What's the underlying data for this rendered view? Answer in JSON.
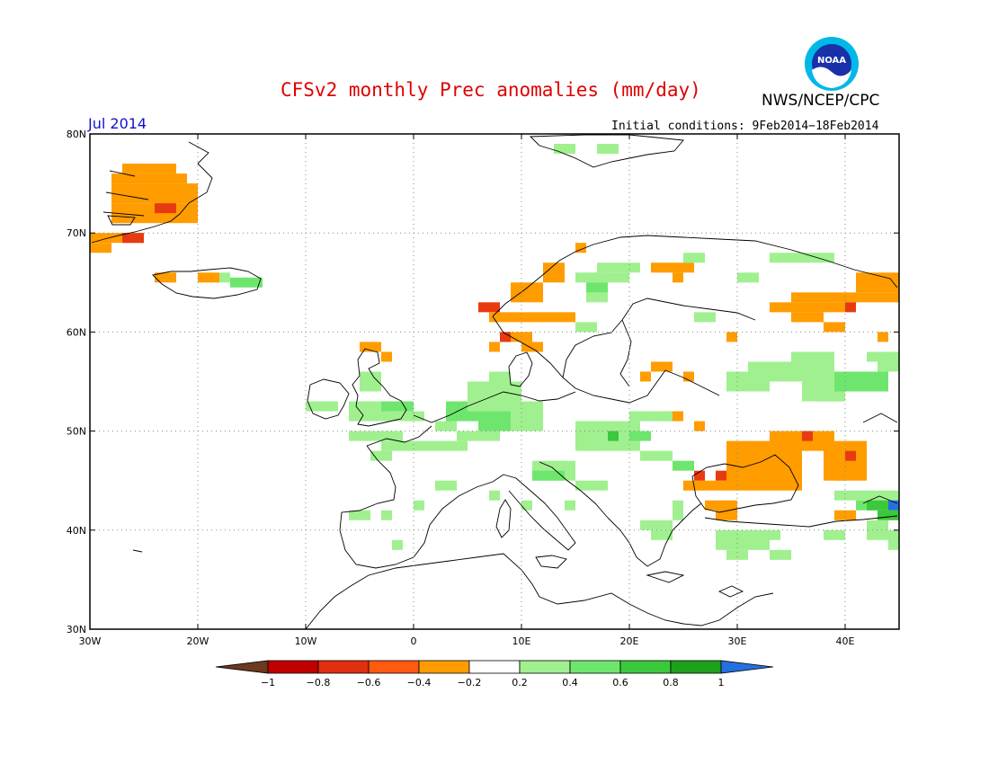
{
  "header": {
    "title": "CFSv2 monthly Prec anomalies (mm/day)",
    "agency": "NWS/NCEP/CPC",
    "logo_text": "NOAA",
    "month": "Jul 2014",
    "initial_conditions": "Initial conditions: 9Feb2014−18Feb2014"
  },
  "map": {
    "lon_range": [
      -30,
      45
    ],
    "lat_range": [
      30,
      80
    ],
    "lat_ticks": [
      {
        "value": 80,
        "label": "80N"
      },
      {
        "value": 70,
        "label": "70N"
      },
      {
        "value": 60,
        "label": "60N"
      },
      {
        "value": 50,
        "label": "50N"
      },
      {
        "value": 40,
        "label": "40N"
      },
      {
        "value": 30,
        "label": "30N"
      }
    ],
    "lon_ticks": [
      {
        "value": -30,
        "label": "30W"
      },
      {
        "value": -20,
        "label": "20W"
      },
      {
        "value": -10,
        "label": "10W"
      },
      {
        "value": 0,
        "label": "0"
      },
      {
        "value": 10,
        "label": "10E"
      },
      {
        "value": 20,
        "label": "20E"
      },
      {
        "value": 30,
        "label": "30E"
      },
      {
        "value": 40,
        "label": "40E"
      }
    ],
    "grid": true
  },
  "legend": {
    "labels": [
      "−1",
      "−0.8",
      "−0.6",
      "−0.4",
      "−0.2",
      "0.2",
      "0.4",
      "0.6",
      "0.8",
      "1"
    ],
    "colors": [
      "#6b3a1f",
      "#c00000",
      "#e03010",
      "#ff5a10",
      "#ff9c00",
      "#ffffff",
      "#a0f090",
      "#6ee66e",
      "#3cc83c",
      "#1ea01e",
      "#2470e0"
    ]
  },
  "anomaly_colors": {
    "o": "#ff9c00",
    "r": "#e83a10",
    "l": "#a0f090",
    "m": "#6ee66e",
    "g": "#3cc83c",
    "b": "#2470e0"
  },
  "anomalies": [
    {
      "lon": [
        -27,
        -22
      ],
      "lat": [
        76,
        77
      ],
      "v": "o"
    },
    {
      "lon": [
        -28,
        -21
      ],
      "lat": [
        75,
        76
      ],
      "v": "o"
    },
    {
      "lon": [
        -28,
        -20
      ],
      "lat": [
        73,
        75
      ],
      "v": "o"
    },
    {
      "lon": [
        -28,
        -20
      ],
      "lat": [
        71,
        73
      ],
      "v": "o"
    },
    {
      "lon": [
        -24,
        -22
      ],
      "lat": [
        72,
        73
      ],
      "v": "r"
    },
    {
      "lon": [
        -30,
        -25
      ],
      "lat": [
        69,
        70
      ],
      "v": "o"
    },
    {
      "lon": [
        -30,
        -28
      ],
      "lat": [
        68,
        69
      ],
      "v": "o"
    },
    {
      "lon": [
        -27,
        -25
      ],
      "lat": [
        69,
        70
      ],
      "v": "r"
    },
    {
      "lon": [
        -24,
        -22
      ],
      "lat": [
        65,
        66
      ],
      "v": "o"
    },
    {
      "lon": [
        -20,
        -18
      ],
      "lat": [
        65,
        66
      ],
      "v": "o"
    },
    {
      "lon": [
        -17,
        -14
      ],
      "lat": [
        64.5,
        65.5
      ],
      "v": "m"
    },
    {
      "lon": [
        -18,
        -17
      ],
      "lat": [
        65,
        66
      ],
      "v": "l"
    },
    {
      "lon": [
        6,
        8
      ],
      "lat": [
        62,
        63
      ],
      "v": "r"
    },
    {
      "lon": [
        7,
        12
      ],
      "lat": [
        61,
        62
      ],
      "v": "o"
    },
    {
      "lon": [
        9,
        12
      ],
      "lat": [
        63,
        65
      ],
      "v": "o"
    },
    {
      "lon": [
        12,
        14
      ],
      "lat": [
        65,
        67
      ],
      "v": "o"
    },
    {
      "lon": [
        15,
        16
      ],
      "lat": [
        68,
        69
      ],
      "v": "o"
    },
    {
      "lon": [
        12,
        15
      ],
      "lat": [
        61,
        62
      ],
      "v": "o"
    },
    {
      "lon": [
        8,
        11
      ],
      "lat": [
        59,
        60
      ],
      "v": "o"
    },
    {
      "lon": [
        10,
        12
      ],
      "lat": [
        58,
        59
      ],
      "v": "o"
    },
    {
      "lon": [
        7,
        8
      ],
      "lat": [
        58,
        59
      ],
      "v": "o"
    },
    {
      "lon": [
        8,
        9
      ],
      "lat": [
        59,
        60
      ],
      "v": "r"
    },
    {
      "lon": [
        16,
        18
      ],
      "lat": [
        63,
        66
      ],
      "v": "l"
    },
    {
      "lon": [
        17,
        21
      ],
      "lat": [
        66,
        67
      ],
      "v": "l"
    },
    {
      "lon": [
        16,
        18
      ],
      "lat": [
        64,
        65
      ],
      "v": "m"
    },
    {
      "lon": [
        15,
        20
      ],
      "lat": [
        65,
        66
      ],
      "v": "l"
    },
    {
      "lon": [
        15,
        17
      ],
      "lat": [
        60,
        61
      ],
      "v": "l"
    },
    {
      "lon": [
        22,
        26
      ],
      "lat": [
        66,
        67
      ],
      "v": "o"
    },
    {
      "lon": [
        24,
        25
      ],
      "lat": [
        65,
        66
      ],
      "v": "o"
    },
    {
      "lon": [
        25,
        27
      ],
      "lat": [
        67,
        68
      ],
      "v": "l"
    },
    {
      "lon": [
        26,
        28
      ],
      "lat": [
        61,
        62
      ],
      "v": "l"
    },
    {
      "lon": [
        30,
        32
      ],
      "lat": [
        65,
        66
      ],
      "v": "l"
    },
    {
      "lon": [
        33,
        39
      ],
      "lat": [
        67,
        68
      ],
      "v": "l"
    },
    {
      "lon": [
        33,
        40
      ],
      "lat": [
        62,
        63
      ],
      "v": "o"
    },
    {
      "lon": [
        35,
        45
      ],
      "lat": [
        63,
        64
      ],
      "v": "o"
    },
    {
      "lon": [
        41,
        45
      ],
      "lat": [
        64,
        66
      ],
      "v": "o"
    },
    {
      "lon": [
        35,
        38
      ],
      "lat": [
        61,
        62
      ],
      "v": "o"
    },
    {
      "lon": [
        38,
        40
      ],
      "lat": [
        60,
        61
      ],
      "v": "o"
    },
    {
      "lon": [
        40,
        41
      ],
      "lat": [
        62,
        63
      ],
      "v": "r"
    },
    {
      "lon": [
        43,
        44
      ],
      "lat": [
        59,
        60
      ],
      "v": "o"
    },
    {
      "lon": [
        29,
        30
      ],
      "lat": [
        59,
        60
      ],
      "v": "o"
    },
    {
      "lon": [
        22,
        24
      ],
      "lat": [
        56,
        57
      ],
      "v": "o"
    },
    {
      "lon": [
        21,
        22
      ],
      "lat": [
        55,
        56
      ],
      "v": "o"
    },
    {
      "lon": [
        25,
        26
      ],
      "lat": [
        55,
        56
      ],
      "v": "o"
    },
    {
      "lon": [
        23,
        25
      ],
      "lat": [
        51,
        52
      ],
      "v": "o"
    },
    {
      "lon": [
        26,
        27
      ],
      "lat": [
        50,
        51
      ],
      "v": "o"
    },
    {
      "lon": [
        -5,
        -3
      ],
      "lat": [
        58,
        59
      ],
      "v": "o"
    },
    {
      "lon": [
        -3,
        -2
      ],
      "lat": [
        57,
        58
      ],
      "v": "o"
    },
    {
      "lon": [
        -5,
        -3
      ],
      "lat": [
        54,
        56
      ],
      "v": "l"
    },
    {
      "lon": [
        -10,
        -7
      ],
      "lat": [
        52,
        53
      ],
      "v": "l"
    },
    {
      "lon": [
        -6,
        -2
      ],
      "lat": [
        51,
        53
      ],
      "v": "l"
    },
    {
      "lon": [
        -3,
        0
      ],
      "lat": [
        52,
        53
      ],
      "v": "m"
    },
    {
      "lon": [
        -2,
        1
      ],
      "lat": [
        51,
        52
      ],
      "v": "l"
    },
    {
      "lon": [
        -6,
        -1
      ],
      "lat": [
        49,
        50
      ],
      "v": "l"
    },
    {
      "lon": [
        -3,
        5
      ],
      "lat": [
        48,
        49
      ],
      "v": "l"
    },
    {
      "lon": [
        -4,
        -2
      ],
      "lat": [
        47,
        48
      ],
      "v": "l"
    },
    {
      "lon": [
        2,
        4
      ],
      "lat": [
        50,
        51
      ],
      "v": "l"
    },
    {
      "lon": [
        3,
        6
      ],
      "lat": [
        51,
        53
      ],
      "v": "m"
    },
    {
      "lon": [
        5,
        10
      ],
      "lat": [
        52,
        55
      ],
      "v": "l"
    },
    {
      "lon": [
        6,
        9
      ],
      "lat": [
        50,
        52
      ],
      "v": "m"
    },
    {
      "lon": [
        4,
        8
      ],
      "lat": [
        49,
        50
      ],
      "v": "l"
    },
    {
      "lon": [
        9,
        12
      ],
      "lat": [
        50,
        53
      ],
      "v": "l"
    },
    {
      "lon": [
        7,
        9
      ],
      "lat": [
        55,
        56
      ],
      "v": "l"
    },
    {
      "lon": [
        15,
        17
      ],
      "lat": [
        48,
        51
      ],
      "v": "l"
    },
    {
      "lon": [
        16,
        21
      ],
      "lat": [
        48,
        51
      ],
      "v": "l"
    },
    {
      "lon": [
        18,
        19
      ],
      "lat": [
        49,
        50
      ],
      "v": "g"
    },
    {
      "lon": [
        20,
        22
      ],
      "lat": [
        49,
        50
      ],
      "v": "m"
    },
    {
      "lon": [
        21,
        24
      ],
      "lat": [
        47,
        48
      ],
      "v": "l"
    },
    {
      "lon": [
        20,
        24
      ],
      "lat": [
        51,
        52
      ],
      "v": "l"
    },
    {
      "lon": [
        11,
        15
      ],
      "lat": [
        45,
        47
      ],
      "v": "l"
    },
    {
      "lon": [
        11,
        14
      ],
      "lat": [
        45,
        46
      ],
      "v": "m"
    },
    {
      "lon": [
        24,
        26
      ],
      "lat": [
        46,
        47
      ],
      "v": "m"
    },
    {
      "lon": [
        15,
        18
      ],
      "lat": [
        44,
        45
      ],
      "v": "l"
    },
    {
      "lon": [
        21,
        24
      ],
      "lat": [
        40,
        41
      ],
      "v": "l"
    },
    {
      "lon": [
        22,
        24
      ],
      "lat": [
        39,
        40
      ],
      "v": "l"
    },
    {
      "lon": [
        24,
        25
      ],
      "lat": [
        41,
        43
      ],
      "v": "l"
    },
    {
      "lon": [
        14,
        15
      ],
      "lat": [
        42,
        43
      ],
      "v": "l"
    },
    {
      "lon": [
        10,
        11
      ],
      "lat": [
        42,
        43
      ],
      "v": "l"
    },
    {
      "lon": [
        -2,
        -1
      ],
      "lat": [
        38,
        39
      ],
      "v": "l"
    },
    {
      "lon": [
        -6,
        -4
      ],
      "lat": [
        41,
        42
      ],
      "v": "l"
    },
    {
      "lon": [
        -3,
        -2
      ],
      "lat": [
        41,
        42
      ],
      "v": "l"
    },
    {
      "lon": [
        0,
        1
      ],
      "lat": [
        42,
        43
      ],
      "v": "l"
    },
    {
      "lon": [
        2,
        4
      ],
      "lat": [
        44,
        45
      ],
      "v": "l"
    },
    {
      "lon": [
        7,
        8
      ],
      "lat": [
        43,
        44
      ],
      "v": "l"
    },
    {
      "lon": [
        29,
        33
      ],
      "lat": [
        54,
        56
      ],
      "v": "l"
    },
    {
      "lon": [
        31,
        38
      ],
      "lat": [
        55,
        57
      ],
      "v": "l"
    },
    {
      "lon": [
        35,
        39
      ],
      "lat": [
        56,
        58
      ],
      "v": "l"
    },
    {
      "lon": [
        36,
        40
      ],
      "lat": [
        53,
        56
      ],
      "v": "l"
    },
    {
      "lon": [
        39,
        44
      ],
      "lat": [
        54,
        56
      ],
      "v": "m"
    },
    {
      "lon": [
        37,
        40
      ],
      "lat": [
        53,
        54
      ],
      "v": "l"
    },
    {
      "lon": [
        43,
        45
      ],
      "lat": [
        56,
        58
      ],
      "v": "l"
    },
    {
      "lon": [
        42,
        44
      ],
      "lat": [
        57,
        58
      ],
      "v": "l"
    },
    {
      "lon": [
        29,
        36
      ],
      "lat": [
        44,
        49
      ],
      "v": "o"
    },
    {
      "lon": [
        33,
        39
      ],
      "lat": [
        48,
        50
      ],
      "v": "o"
    },
    {
      "lon": [
        36,
        37
      ],
      "lat": [
        49,
        50
      ],
      "v": "r"
    },
    {
      "lon": [
        38,
        42
      ],
      "lat": [
        45,
        49
      ],
      "v": "o"
    },
    {
      "lon": [
        39,
        40
      ],
      "lat": [
        45,
        47
      ],
      "v": "o"
    },
    {
      "lon": [
        40,
        41
      ],
      "lat": [
        47,
        48
      ],
      "v": "r"
    },
    {
      "lon": [
        25,
        29
      ],
      "lat": [
        44,
        45
      ],
      "v": "o"
    },
    {
      "lon": [
        26,
        27
      ],
      "lat": [
        45,
        46
      ],
      "v": "r"
    },
    {
      "lon": [
        28,
        29
      ],
      "lat": [
        45,
        46
      ],
      "v": "r"
    },
    {
      "lon": [
        28,
        30
      ],
      "lat": [
        41,
        43
      ],
      "v": "o"
    },
    {
      "lon": [
        27,
        28
      ],
      "lat": [
        42,
        43
      ],
      "v": "o"
    },
    {
      "lon": [
        34,
        36
      ],
      "lat": [
        45,
        46
      ],
      "v": "o"
    },
    {
      "lon": [
        39,
        45
      ],
      "lat": [
        43,
        44
      ],
      "v": "l"
    },
    {
      "lon": [
        41,
        45
      ],
      "lat": [
        42,
        43
      ],
      "v": "m"
    },
    {
      "lon": [
        42,
        44
      ],
      "lat": [
        42,
        43
      ],
      "v": "g"
    },
    {
      "lon": [
        44,
        45
      ],
      "lat": [
        42,
        43
      ],
      "v": "b"
    },
    {
      "lon": [
        43,
        45
      ],
      "lat": [
        41,
        42
      ],
      "v": "g"
    },
    {
      "lon": [
        39,
        41
      ],
      "lat": [
        41,
        42
      ],
      "v": "o"
    },
    {
      "lon": [
        42,
        44
      ],
      "lat": [
        39,
        41
      ],
      "v": "l"
    },
    {
      "lon": [
        44,
        45
      ],
      "lat": [
        38,
        40
      ],
      "v": "l"
    },
    {
      "lon": [
        38,
        40
      ],
      "lat": [
        39,
        40
      ],
      "v": "l"
    },
    {
      "lon": [
        28,
        33
      ],
      "lat": [
        38,
        40
      ],
      "v": "l"
    },
    {
      "lon": [
        31,
        34
      ],
      "lat": [
        39,
        40
      ],
      "v": "l"
    },
    {
      "lon": [
        29,
        31
      ],
      "lat": [
        37,
        38
      ],
      "v": "l"
    },
    {
      "lon": [
        33,
        35
      ],
      "lat": [
        37,
        38
      ],
      "v": "l"
    },
    {
      "lon": [
        17,
        19
      ],
      "lat": [
        78,
        79
      ],
      "v": "l"
    },
    {
      "lon": [
        13,
        15
      ],
      "lat": [
        78,
        79
      ],
      "v": "l"
    }
  ]
}
